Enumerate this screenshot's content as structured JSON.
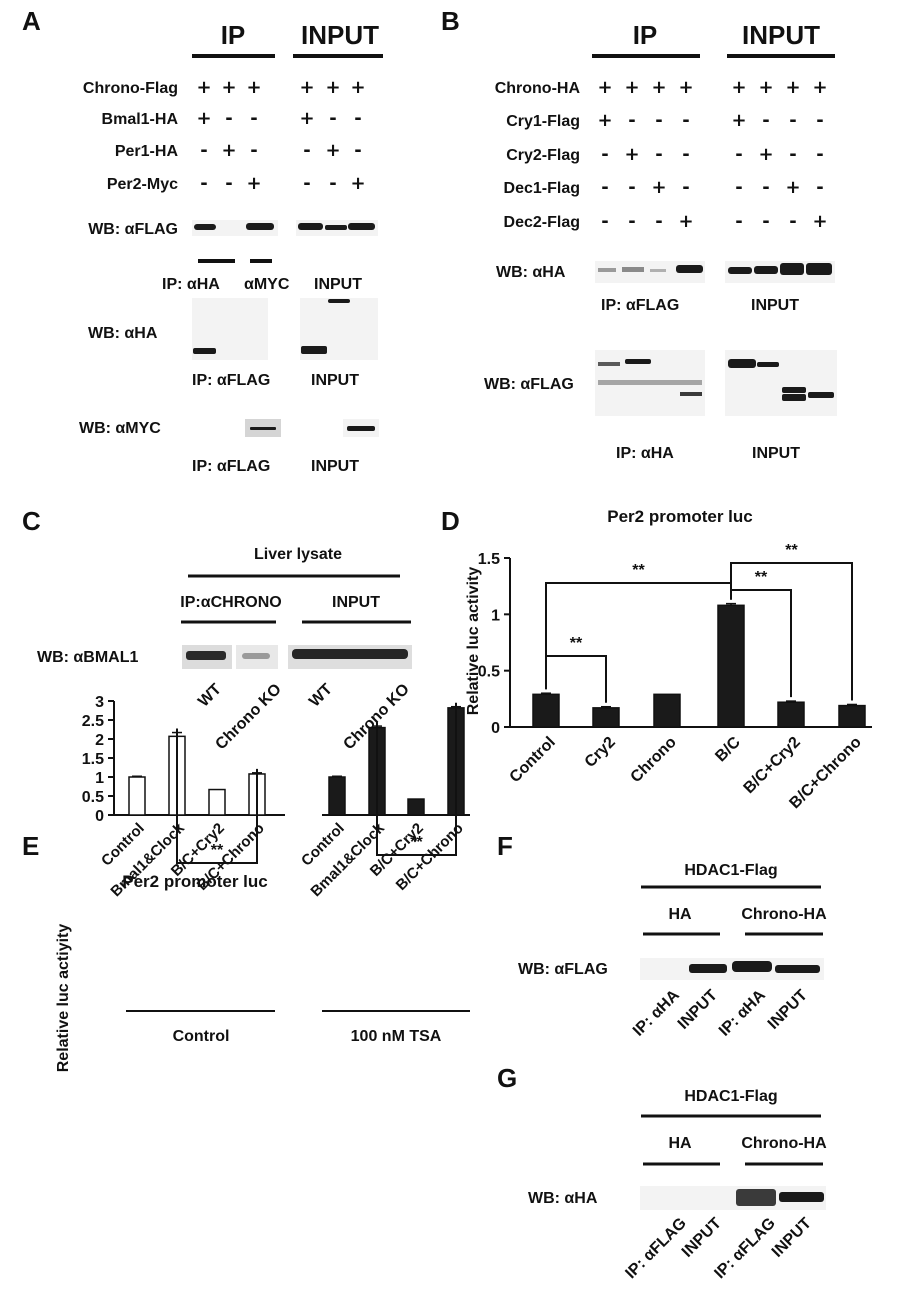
{
  "panelA": {
    "letter": "A",
    "hdr_ip": "IP",
    "hdr_input": "INPUT",
    "rows": [
      {
        "label": "Chrono-Flag",
        "marks": [
          "+",
          "+",
          "+",
          "+",
          "+",
          "+"
        ]
      },
      {
        "label": "Bmal1-HA",
        "marks": [
          "+",
          "-",
          "-",
          "+",
          "-",
          "-"
        ]
      },
      {
        "label": "Per1-HA",
        "marks": [
          "-",
          "+",
          "-",
          "-",
          "+",
          "-"
        ]
      },
      {
        "label": "Per2-Myc",
        "marks": [
          "-",
          "-",
          "+",
          "-",
          "-",
          "+"
        ]
      }
    ],
    "wb_flag": "WB: αFLAG",
    "ip_ha": "IP: αHA",
    "ip_myc": "αMYC",
    "input1": "INPUT",
    "wb_ha": "WB: αHA",
    "ip_flag1": "IP: αFLAG",
    "input2": "INPUT",
    "wb_myc": "WB: αMYC",
    "ip_flag2": "IP: αFLAG",
    "input3": "INPUT"
  },
  "panelB": {
    "letter": "B",
    "hdr_ip": "IP",
    "hdr_input": "INPUT",
    "rows": [
      {
        "label": "Chrono-HA",
        "marks": [
          "+",
          "+",
          "+",
          "+",
          "+",
          "+",
          "+",
          "+"
        ]
      },
      {
        "label": "Cry1-Flag",
        "marks": [
          "+",
          "-",
          "-",
          "-",
          "+",
          "-",
          "-",
          "-"
        ]
      },
      {
        "label": "Cry2-Flag",
        "marks": [
          "-",
          "+",
          "-",
          "-",
          "-",
          "+",
          "-",
          "-"
        ]
      },
      {
        "label": "Dec1-Flag",
        "marks": [
          "-",
          "-",
          "+",
          "-",
          "-",
          "-",
          "+",
          "-"
        ]
      },
      {
        "label": "Dec2-Flag",
        "marks": [
          "-",
          "-",
          "-",
          "+",
          "-",
          "-",
          "-",
          "+"
        ]
      }
    ],
    "wb_ha": "WB: αHA",
    "ip_flag": "IP: αFLAG",
    "input1": "INPUT",
    "wb_flag": "WB: αFLAG",
    "ip_ha": "IP: αHA",
    "input2": "INPUT"
  },
  "panelC": {
    "letter": "C",
    "liver": "Liver lysate",
    "ip": "IP:αCHRONO",
    "input": "INPUT",
    "wb": "WB: αBMAL1",
    "lanes": [
      "WT",
      "Chrono KO",
      "WT",
      "Chrono KO"
    ]
  },
  "panelF": {
    "letter": "F",
    "top": "HDAC1-Flag",
    "g1": "HA",
    "g2": "Chrono-HA",
    "wb": "WB: αFLAG",
    "lanes": [
      "IP: αHA",
      "INPUT",
      "IP: αHA",
      "INPUT"
    ]
  },
  "panelG": {
    "letter": "G",
    "top": "HDAC1-Flag",
    "g1": "HA",
    "g2": "Chrono-HA",
    "wb": "WB: αHA",
    "lanes": [
      "IP: αFLAG",
      "INPUT",
      "IP: αFLAG",
      "INPUT"
    ]
  },
  "colors": {
    "bar_dark": "#1a1a1a",
    "bar_open": "#ffffff"
  },
  "chart_data": [
    {
      "panel": "D",
      "letter": "D",
      "type": "bar",
      "title": "Per2 promoter luc",
      "ylabel": "Relative luc activity",
      "categories": [
        "Control",
        "Cry2",
        "Chrono",
        "B/C",
        "B/C+Cry2",
        "B/C+Chrono"
      ],
      "values": [
        0.29,
        0.17,
        0.29,
        1.08,
        0.22,
        0.19
      ],
      "errors": [
        0.01,
        0.01,
        0.0,
        0.015,
        0.01,
        0.01
      ],
      "ylim": [
        0,
        1.5
      ],
      "yticks": [
        0,
        0.5,
        1,
        1.5
      ],
      "ytick_labels": [
        "0",
        "0.5",
        "1",
        "1.5"
      ],
      "significance": [
        {
          "from": 0,
          "to": 1,
          "label": "**"
        },
        {
          "from": 0,
          "to": 3,
          "label": "**"
        },
        {
          "from": 3,
          "to": 4,
          "label": "**"
        },
        {
          "from": 3,
          "to": 5,
          "label": "**"
        }
      ]
    },
    {
      "panel": "E",
      "letter": "E",
      "type": "bar",
      "title": "Per2 promoter luc",
      "ylabel": "Relative luc actiyity",
      "categories": [
        "Control",
        "Bmal1&Clock",
        "B/C+Cry2",
        "B/C+Chrono"
      ],
      "groups": [
        "Control",
        "100 nM  TSA"
      ],
      "series": [
        {
          "group": "Control",
          "values": [
            1.0,
            2.07,
            0.67,
            1.08
          ],
          "errors": [
            0.02,
            0.1,
            0.0,
            0.03
          ],
          "fill": "open"
        },
        {
          "group": "100 nM  TSA",
          "values": [
            1.0,
            2.3,
            0.42,
            2.82
          ],
          "errors": [
            0.02,
            0.04,
            0.0,
            0.03
          ],
          "fill": "dark"
        }
      ],
      "ylim": [
        0,
        3
      ],
      "yticks": [
        0,
        0.5,
        1,
        1.5,
        2,
        2.5,
        3
      ],
      "ytick_labels": [
        "0",
        "0.5",
        "1",
        "1.5",
        "2",
        "2.5",
        "3"
      ],
      "significance": [
        {
          "group": 0,
          "from": 1,
          "to": 3,
          "label": "**"
        },
        {
          "group": 1,
          "from": 1,
          "to": 3,
          "label": "**"
        }
      ]
    }
  ]
}
